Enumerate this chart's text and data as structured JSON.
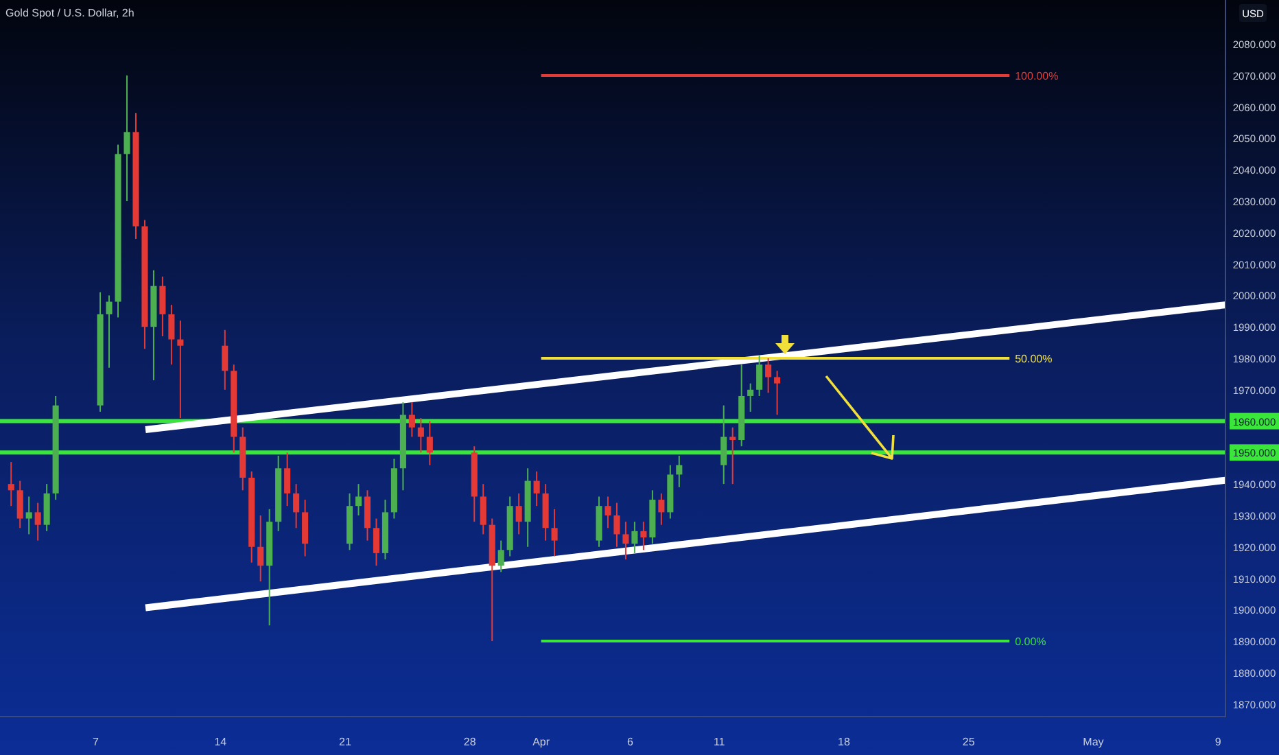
{
  "chart_data": {
    "type": "candlestick",
    "title": "Gold Spot / U.S. Dollar, 2h",
    "ylabel": "USD",
    "x": [
      "--03-02T06:00",
      "--03-02T18:00",
      "--03-03T06:00",
      "--03-03T18:00",
      "--03-04T06:00",
      "--03-04T18:00",
      "--03-07T06:00",
      "--03-07T18:00",
      "--03-08T06:00",
      "--03-08T18:00",
      "--03-09T06:00",
      "--03-09T18:00",
      "--03-10T06:00",
      "--03-10T18:00",
      "--03-11T06:00",
      "--03-11T18:00",
      "--03-14T06:00",
      "--03-14T18:00",
      "--03-15T06:00",
      "--03-15T18:00",
      "--03-16T06:00",
      "--03-16T18:00",
      "--03-17T06:00",
      "--03-17T18:00",
      "--03-18T06:00",
      "--03-18T18:00",
      "--03-21T06:00",
      "--03-21T18:00",
      "--03-22T06:00",
      "--03-22T18:00",
      "--03-23T06:00",
      "--03-23T18:00",
      "--03-24T06:00",
      "--03-24T18:00",
      "--03-25T06:00",
      "--03-25T18:00",
      "--03-28T06:00",
      "--03-28T18:00",
      "--03-29T06:00",
      "--03-29T18:00",
      "--03-30T06:00",
      "--03-30T18:00",
      "--03-31T06:00",
      "--03-31T18:00",
      "--04-01T06:00",
      "--04-01T18:00",
      "--04-04T06:00",
      "--04-04T18:00",
      "--04-05T06:00",
      "--04-05T18:00",
      "--04-06T06:00",
      "--04-06T18:00",
      "--04-07T06:00",
      "--04-07T18:00",
      "--04-08T06:00",
      "--04-08T18:00",
      "--04-11T06:00",
      "--04-11T18:00",
      "--04-12T06:00",
      "--04-12T18:00",
      "--04-13T06:00",
      "--04-13T18:00",
      "--04-14T06:00"
    ],
    "ohlc": [
      [
        1940,
        1947,
        1933,
        1938
      ],
      [
        1938,
        1941,
        1926,
        1929
      ],
      [
        1929,
        1936,
        1924,
        1931
      ],
      [
        1931,
        1934,
        1922,
        1927
      ],
      [
        1927,
        1940,
        1925,
        1937
      ],
      [
        1937,
        1968,
        1935,
        1965
      ],
      [
        1965,
        2001,
        1963,
        1994
      ],
      [
        1994,
        2000,
        1977,
        1998
      ],
      [
        1998,
        2048,
        1993,
        2045
      ],
      [
        2045,
        2070,
        2030,
        2052
      ],
      [
        2052,
        2058,
        2018,
        2022
      ],
      [
        2022,
        2024,
        1983,
        1990
      ],
      [
        1990,
        2008,
        1973,
        2003
      ],
      [
        2003,
        2006,
        1987,
        1994
      ],
      [
        1994,
        1997,
        1978,
        1986
      ],
      [
        1986,
        1992,
        1961,
        1984
      ],
      [
        1984,
        1989,
        1970,
        1976
      ],
      [
        1976,
        1978,
        1950,
        1955
      ],
      [
        1955,
        1958,
        1938,
        1942
      ],
      [
        1942,
        1944,
        1915,
        1920
      ],
      [
        1920,
        1930,
        1909,
        1914
      ],
      [
        1914,
        1932,
        1895,
        1928
      ],
      [
        1928,
        1949,
        1925,
        1945
      ],
      [
        1945,
        1950,
        1933,
        1937
      ],
      [
        1937,
        1940,
        1926,
        1931
      ],
      [
        1931,
        1935,
        1917,
        1921
      ],
      [
        1921,
        1937,
        1919,
        1933
      ],
      [
        1933,
        1940,
        1930,
        1936
      ],
      [
        1936,
        1938,
        1922,
        1926
      ],
      [
        1926,
        1929,
        1914,
        1918
      ],
      [
        1918,
        1935,
        1916,
        1931
      ],
      [
        1931,
        1948,
        1929,
        1945
      ],
      [
        1945,
        1966,
        1938,
        1962
      ],
      [
        1962,
        1966,
        1955,
        1958
      ],
      [
        1958,
        1961,
        1950,
        1955
      ],
      [
        1955,
        1960,
        1946,
        1950
      ],
      [
        1950,
        1952,
        1928,
        1936
      ],
      [
        1936,
        1940,
        1924,
        1927
      ],
      [
        1927,
        1929,
        1890,
        1914
      ],
      [
        1914,
        1922,
        1912,
        1919
      ],
      [
        1919,
        1936,
        1917,
        1933
      ],
      [
        1933,
        1937,
        1924,
        1928
      ],
      [
        1928,
        1945,
        1920,
        1941
      ],
      [
        1941,
        1944,
        1933,
        1937
      ],
      [
        1937,
        1940,
        1922,
        1926
      ],
      [
        1926,
        1932,
        1917,
        1922
      ],
      [
        1922,
        1936,
        1920,
        1933
      ],
      [
        1933,
        1936,
        1926,
        1930
      ],
      [
        1930,
        1934,
        1920,
        1924
      ],
      [
        1924,
        1928,
        1916,
        1921
      ],
      [
        1921,
        1928,
        1918,
        1925
      ],
      [
        1925,
        1928,
        1919,
        1923
      ],
      [
        1923,
        1938,
        1921,
        1935
      ],
      [
        1935,
        1937,
        1927,
        1931
      ],
      [
        1931,
        1946,
        1929,
        1943
      ],
      [
        1943,
        1949,
        1939,
        1946
      ],
      [
        1946,
        1965,
        1940,
        1955
      ],
      [
        1955,
        1958,
        1940,
        1954
      ],
      [
        1954,
        1978,
        1952,
        1968
      ],
      [
        1968,
        1972,
        1963,
        1970
      ],
      [
        1970,
        1981,
        1968,
        1978
      ],
      [
        1978,
        1980,
        1969,
        1974
      ],
      [
        1974,
        1976,
        1962,
        1972
      ]
    ],
    "series": [
      {
        "type": "line",
        "x": [
          "--03-09T19:00",
          "--05-09T10:00"
        ],
        "values": [
          1957.3,
          1997
        ],
        "color": "#ffffff"
      },
      {
        "type": "line",
        "x": [
          "--03-09T19:00",
          "--05-09T10:00"
        ],
        "values": [
          1900.6,
          1941.2
        ],
        "color": "#ffffff"
      },
      {
        "type": "line",
        "x": [
          "--04-01T00:00",
          "--04-27T07:00"
        ],
        "values": [
          2070,
          2070
        ],
        "color": "#e53935"
      },
      {
        "type": "line",
        "x": [
          "--04-01T00:00",
          "--04-27T07:00"
        ],
        "values": [
          1980,
          1980
        ],
        "color": "#f2e03a"
      },
      {
        "type": "line",
        "x": [
          "--04-01T00:00",
          "--04-27T07:00"
        ],
        "values": [
          1890,
          1890
        ],
        "color": "#39e639"
      }
    ],
    "annotations": [
      {
        "text": "100.00%",
        "x": "--04-27T07:00",
        "y": 2070
      },
      {
        "text": "50.00%",
        "x": "--04-27T07:00",
        "y": 1980
      },
      {
        "text": "0.00%",
        "x": "--04-27T07:00",
        "y": 1890
      }
    ],
    "xlim": [
      "--03-01T15:00",
      "--05-09T10:00"
    ],
    "xticks": [
      {
        "value": "--03-07",
        "label": "7"
      },
      {
        "value": "--03-14",
        "label": "14"
      },
      {
        "value": "--03-21",
        "label": "21"
      },
      {
        "value": "--03-28",
        "label": "28"
      },
      {
        "value": "--04-01",
        "label": "Apr"
      },
      {
        "value": "--04-06",
        "label": "6"
      },
      {
        "value": "--04-11",
        "label": "11"
      },
      {
        "value": "--04-18",
        "label": "18"
      },
      {
        "value": "--04-25",
        "label": "25"
      },
      {
        "value": "--05-02",
        "label": "May"
      },
      {
        "value": "--05-09",
        "label": "9"
      }
    ],
    "ylim": [
      1866,
      2094
    ],
    "yticks": [
      {
        "value": 1870,
        "label": "1870.000"
      },
      {
        "value": 1880,
        "label": "1880.000"
      },
      {
        "value": 1890,
        "label": "1890.000"
      },
      {
        "value": 1900,
        "label": "1900.000"
      },
      {
        "value": 1910,
        "label": "1910.000"
      },
      {
        "value": 1920,
        "label": "1920.000"
      },
      {
        "value": 1930,
        "label": "1930.000"
      },
      {
        "value": 1940,
        "label": "1940.000"
      },
      {
        "value": 1950,
        "label": "1950.000"
      },
      {
        "value": 1960,
        "label": "1960.000"
      },
      {
        "value": 1970,
        "label": "1970.000"
      },
      {
        "value": 1980,
        "label": "1980.000"
      },
      {
        "value": 1990,
        "label": "1990.000"
      },
      {
        "value": 2000,
        "label": "2000.000"
      },
      {
        "value": 2010,
        "label": "2010.000"
      },
      {
        "value": 2020,
        "label": "2020.000"
      },
      {
        "value": 2030,
        "label": "2030.000"
      },
      {
        "value": 2040,
        "label": "2040.000"
      },
      {
        "value": 2050,
        "label": "2050.000"
      },
      {
        "value": 2060,
        "label": "2060.000"
      },
      {
        "value": 2070,
        "label": "2070.000"
      },
      {
        "value": 2080,
        "label": "2080.000"
      }
    ],
    "ref_lines": [
      {
        "axis": "y",
        "value": 1960,
        "color": "#39e639"
      },
      {
        "axis": "y",
        "value": 1950,
        "color": "#39e639"
      }
    ],
    "grid": false
  }
}
